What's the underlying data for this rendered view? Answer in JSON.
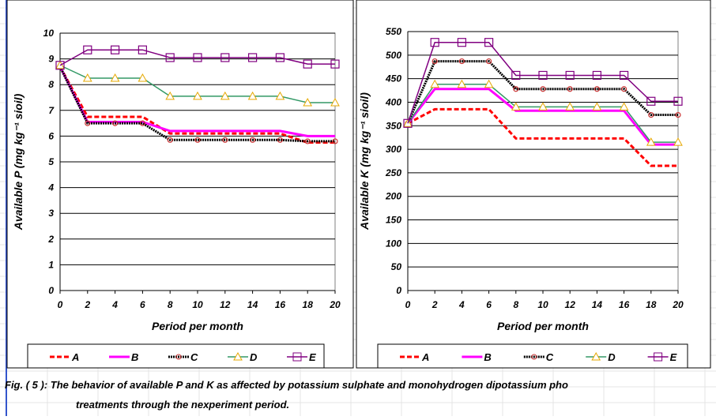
{
  "chart_data": [
    {
      "type": "line",
      "xlabel": "Period per month",
      "ylabel": "Available P (mg kg⁻¹ sioil)",
      "x": [
        0,
        2,
        4,
        6,
        8,
        10,
        12,
        14,
        16,
        18,
        20
      ],
      "xlim": [
        0,
        20
      ],
      "xticks": [
        0,
        2,
        4,
        6,
        8,
        10,
        12,
        14,
        16,
        18,
        20
      ],
      "ylim": [
        0,
        10
      ],
      "yticks": [
        0,
        1,
        2,
        3,
        4,
        5,
        6,
        7,
        8,
        9,
        10
      ],
      "grid": true,
      "series": [
        {
          "name": "A",
          "color": "#ff0000",
          "dash": "dashed",
          "marker": "none",
          "values": [
            8.7,
            6.75,
            6.75,
            6.75,
            6.1,
            6.1,
            6.1,
            6.1,
            6.1,
            5.75,
            5.75
          ]
        },
        {
          "name": "B",
          "color": "#ff00ff",
          "dash": "solid",
          "marker": "none",
          "values": [
            8.7,
            6.55,
            6.55,
            6.55,
            6.2,
            6.2,
            6.2,
            6.2,
            6.2,
            6.0,
            6.0
          ]
        },
        {
          "name": "C",
          "color": "#000000",
          "dash": "dotted",
          "marker": "circle",
          "values": [
            8.7,
            6.5,
            6.5,
            6.5,
            5.85,
            5.85,
            5.85,
            5.85,
            5.85,
            5.8,
            5.8
          ]
        },
        {
          "name": "D",
          "color": "#339966",
          "dash": "solid",
          "marker": "triangle",
          "values": [
            8.75,
            8.25,
            8.25,
            8.25,
            7.55,
            7.55,
            7.55,
            7.55,
            7.55,
            7.3,
            7.3
          ]
        },
        {
          "name": "E",
          "color": "#800080",
          "dash": "solid",
          "marker": "square",
          "values": [
            8.75,
            9.35,
            9.35,
            9.35,
            9.05,
            9.05,
            9.05,
            9.05,
            9.05,
            8.8,
            8.8
          ]
        }
      ]
    },
    {
      "type": "line",
      "xlabel": "Period per month",
      "ylabel": "Available K (mg kg⁻¹ sioil)",
      "x": [
        0,
        2,
        4,
        6,
        8,
        10,
        12,
        14,
        16,
        18,
        20
      ],
      "xlim": [
        0,
        20
      ],
      "xticks": [
        0,
        2,
        4,
        6,
        8,
        10,
        12,
        14,
        16,
        18,
        20
      ],
      "ylim": [
        0,
        550
      ],
      "yticks": [
        0,
        50,
        100,
        150,
        200,
        250,
        300,
        350,
        400,
        450,
        500,
        550
      ],
      "grid": true,
      "series": [
        {
          "name": "A",
          "color": "#ff0000",
          "dash": "dashed",
          "marker": "none",
          "values": [
            355,
            385,
            385,
            385,
            323,
            323,
            323,
            323,
            323,
            265,
            265
          ]
        },
        {
          "name": "B",
          "color": "#ff00ff",
          "dash": "solid",
          "marker": "none",
          "values": [
            355,
            428,
            428,
            428,
            382,
            382,
            382,
            382,
            382,
            310,
            310
          ]
        },
        {
          "name": "C",
          "color": "#000000",
          "dash": "dotted",
          "marker": "circle",
          "values": [
            355,
            487,
            487,
            487,
            428,
            428,
            428,
            428,
            428,
            373,
            373
          ]
        },
        {
          "name": "D",
          "color": "#339966",
          "dash": "solid",
          "marker": "triangle",
          "values": [
            355,
            438,
            438,
            438,
            390,
            390,
            390,
            390,
            390,
            315,
            315
          ]
        },
        {
          "name": "E",
          "color": "#800080",
          "dash": "solid",
          "marker": "square",
          "values": [
            355,
            527,
            527,
            527,
            457,
            457,
            457,
            457,
            457,
            402,
            402
          ]
        }
      ]
    }
  ],
  "caption": [
    "Fig. ( 5 ): The behavior of available P and K as affected by potassium sulphate and monohydrogen dipotassium pho",
    "treatments through the nexperiment period."
  ]
}
